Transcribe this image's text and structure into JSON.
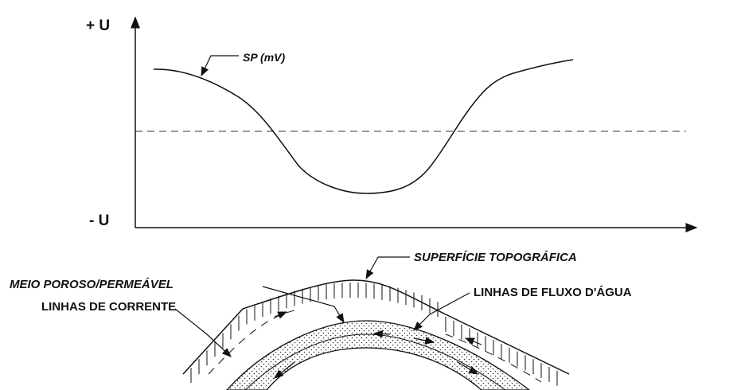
{
  "graph": {
    "y_axis_top_label": "+ U",
    "y_axis_bottom_label": "- U",
    "curve_label": "SP (mV)"
  },
  "section": {
    "surface_label": "SUPERFÍCIE TOPOGRÁFICA",
    "porous_label": "MEIO POROSO/PERMEÁVEL",
    "flow_label": "LINHAS DE FLUXO D'ÁGUA",
    "current_label": "LINHAS DE CORRENTE"
  }
}
